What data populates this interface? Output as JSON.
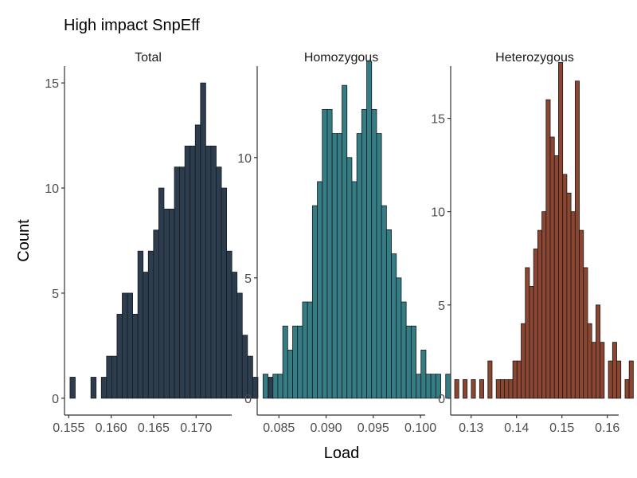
{
  "chart_data": {
    "type": "bar",
    "title": "High impact SnpEff",
    "xlabel": "Load",
    "ylabel": "Count",
    "panels": [
      {
        "name": "Total",
        "color": "#2b3d4f",
        "xlim": [
          0.1545,
          0.1742
        ],
        "ylim": [
          -0.8,
          15.8
        ],
        "xticks": [
          0.155,
          0.16,
          0.165,
          0.17
        ],
        "xtick_labels": [
          "0.155",
          "0.160",
          "0.165",
          "0.170"
        ],
        "yticks": [
          0,
          5,
          10,
          15
        ],
        "ytick_labels": [
          "0",
          "5",
          "10",
          "15"
        ],
        "bin_start": 0.15515,
        "bin_width": 0.000615,
        "counts": [
          1,
          0,
          0,
          0,
          1,
          0,
          1,
          2,
          2,
          4,
          5,
          5,
          4,
          7,
          6,
          7,
          8,
          10,
          9,
          9,
          11,
          11,
          12,
          12,
          13,
          15,
          12,
          12,
          11,
          10,
          7,
          6,
          5,
          3,
          2,
          1,
          0,
          0,
          1
        ]
      },
      {
        "name": "Homozygous",
        "color": "#347d85",
        "xlim": [
          0.0827,
          0.1005
        ],
        "ylim": [
          -0.7,
          13.8
        ],
        "xticks": [
          0.085,
          0.09,
          0.095,
          0.1
        ],
        "xtick_labels": [
          "0.085",
          "0.090",
          "0.095",
          "0.100"
        ],
        "yticks": [
          0,
          5,
          10
        ],
        "ytick_labels": [
          "0",
          "5",
          "10"
        ],
        "bin_start": 0.08332,
        "bin_width": 0.000523,
        "counts": [
          1,
          0,
          1,
          1,
          3,
          2,
          3,
          3,
          4,
          4,
          8,
          9,
          12,
          12,
          11,
          11,
          13,
          10,
          9,
          11,
          12,
          14,
          12,
          11,
          8,
          7,
          6,
          5,
          4,
          3,
          3,
          1,
          2,
          1,
          1,
          1,
          0,
          1
        ]
      },
      {
        "name": "Heterozygous",
        "color": "#8b4530",
        "xlim": [
          0.1255,
          0.1625
        ],
        "ylim": [
          -0.9,
          17.8
        ],
        "xticks": [
          0.13,
          0.14,
          0.15,
          0.16
        ],
        "xtick_labels": [
          "0.13",
          "0.14",
          "0.15",
          "0.16"
        ],
        "yticks": [
          0,
          5,
          10,
          15
        ],
        "ytick_labels": [
          "0",
          "5",
          "10",
          "15"
        ],
        "bin_start": 0.12638,
        "bin_width": 0.000915,
        "counts": [
          1,
          0,
          1,
          0,
          1,
          0,
          1,
          0,
          2,
          0,
          1,
          1,
          1,
          1,
          2,
          2,
          4,
          7,
          6,
          8,
          9,
          10,
          16,
          14,
          13,
          18,
          12,
          11,
          10,
          17,
          9,
          7,
          4,
          3,
          5,
          3,
          0,
          2,
          3,
          2,
          0,
          1,
          2
        ]
      }
    ]
  }
}
